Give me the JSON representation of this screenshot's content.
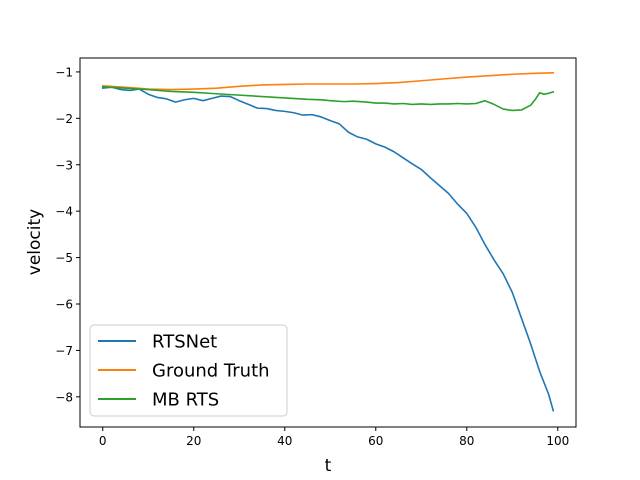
{
  "chart_data": {
    "type": "line",
    "title": "",
    "xlabel": "t",
    "ylabel": "velocity",
    "xlim": [
      -5,
      104
    ],
    "ylim": [
      -8.65,
      -0.7
    ],
    "xticks": [
      0,
      20,
      40,
      60,
      80,
      100
    ],
    "yticks": [
      -1,
      -2,
      -3,
      -4,
      -5,
      -6,
      -7,
      -8
    ],
    "xtick_labels": [
      "0",
      "20",
      "40",
      "60",
      "80",
      "100"
    ],
    "ytick_labels": [
      "−1",
      "−2",
      "−3",
      "−4",
      "−5",
      "−6",
      "−7",
      "−8"
    ],
    "grid": false,
    "legend_position": "lower-left",
    "series": [
      {
        "name": "RTSNet",
        "color": "#1f77b4",
        "x": [
          0,
          2,
          4,
          6,
          8,
          10,
          12,
          14,
          16,
          18,
          20,
          22,
          24,
          26,
          28,
          30,
          32,
          34,
          36,
          38,
          40,
          42,
          44,
          46,
          48,
          50,
          52,
          54,
          56,
          58,
          60,
          62,
          64,
          66,
          68,
          70,
          72,
          74,
          76,
          78,
          80,
          82,
          84,
          86,
          88,
          90,
          92,
          94,
          96,
          98,
          99
        ],
        "y": [
          -1.35,
          -1.33,
          -1.38,
          -1.4,
          -1.37,
          -1.48,
          -1.55,
          -1.58,
          -1.65,
          -1.6,
          -1.57,
          -1.62,
          -1.57,
          -1.52,
          -1.53,
          -1.62,
          -1.7,
          -1.78,
          -1.79,
          -1.83,
          -1.85,
          -1.88,
          -1.93,
          -1.92,
          -1.97,
          -2.05,
          -2.12,
          -2.3,
          -2.4,
          -2.45,
          -2.55,
          -2.62,
          -2.72,
          -2.85,
          -2.98,
          -3.1,
          -3.28,
          -3.45,
          -3.62,
          -3.85,
          -4.05,
          -4.35,
          -4.72,
          -5.05,
          -5.35,
          -5.75,
          -6.3,
          -6.85,
          -7.45,
          -7.95,
          -8.3
        ]
      },
      {
        "name": "Ground Truth",
        "color": "#ff7f0e",
        "x": [
          0,
          5,
          10,
          15,
          20,
          25,
          30,
          35,
          40,
          45,
          50,
          55,
          60,
          65,
          70,
          75,
          80,
          85,
          90,
          95,
          99
        ],
        "y": [
          -1.3,
          -1.33,
          -1.37,
          -1.38,
          -1.37,
          -1.35,
          -1.31,
          -1.28,
          -1.27,
          -1.26,
          -1.26,
          -1.26,
          -1.25,
          -1.23,
          -1.19,
          -1.15,
          -1.11,
          -1.08,
          -1.05,
          -1.03,
          -1.02
        ]
      },
      {
        "name": "MB RTS",
        "color": "#2ca02c",
        "x": [
          0,
          5,
          10,
          15,
          20,
          25,
          30,
          35,
          40,
          45,
          48,
          50,
          53,
          55,
          58,
          60,
          62,
          64,
          66,
          68,
          70,
          72,
          74,
          76,
          78,
          80,
          82,
          84,
          86,
          88,
          90,
          92,
          94,
          95,
          96,
          97,
          98,
          99
        ],
        "y": [
          -1.32,
          -1.35,
          -1.38,
          -1.42,
          -1.44,
          -1.47,
          -1.5,
          -1.53,
          -1.56,
          -1.59,
          -1.6,
          -1.62,
          -1.64,
          -1.63,
          -1.65,
          -1.67,
          -1.67,
          -1.69,
          -1.68,
          -1.7,
          -1.69,
          -1.7,
          -1.69,
          -1.69,
          -1.68,
          -1.69,
          -1.68,
          -1.62,
          -1.7,
          -1.8,
          -1.83,
          -1.82,
          -1.72,
          -1.6,
          -1.45,
          -1.48,
          -1.46,
          -1.43
        ]
      }
    ]
  }
}
